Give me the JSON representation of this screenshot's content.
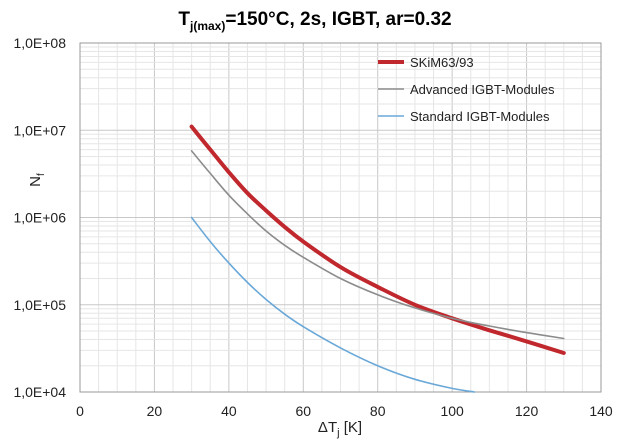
{
  "chart_data": {
    "type": "line",
    "title": {
      "pre": "T",
      "sub": "j(max)",
      "post": "=150°C,  2s,  IGBT, ar=0.32"
    },
    "xlabel": {
      "pre": "ΔT",
      "sub": "j",
      "post": " [K]"
    },
    "ylabel": {
      "pre": "N",
      "sub": "f"
    },
    "xlim": [
      0,
      140
    ],
    "ylim": [
      10000,
      100000000
    ],
    "yscale": "log",
    "grid": true,
    "legend_position": "top-right",
    "xticks": [
      "0",
      "20",
      "40",
      "60",
      "80",
      "100",
      "120",
      "140"
    ],
    "xtick_values": [
      0,
      20,
      40,
      60,
      80,
      100,
      120,
      140
    ],
    "yticks": [
      "1,0E+04",
      "1,0E+05",
      "1,0E+06",
      "1,0E+07",
      "1,0E+08"
    ],
    "ytick_values": [
      10000,
      100000,
      1000000,
      10000000,
      100000000
    ],
    "series": [
      {
        "name": "SKiM63/93",
        "color": "#c0282d",
        "x": [
          30,
          35,
          40,
          45,
          50,
          55,
          60,
          70,
          80,
          90,
          100,
          110,
          120,
          130
        ],
        "y": [
          11000000,
          6000000,
          3300000,
          1900000,
          1200000,
          780000,
          530000,
          270000,
          160000,
          100000,
          70000,
          51000,
          38000,
          28000
        ]
      },
      {
        "name": "Advanced IGBT-Modules",
        "color": "#8c8c8c",
        "x": [
          30,
          35,
          40,
          45,
          50,
          55,
          60,
          70,
          80,
          90,
          100,
          110,
          120,
          130
        ],
        "y": [
          5800000,
          3200000,
          1800000,
          1100000,
          700000,
          480000,
          350000,
          200000,
          130000,
          92000,
          70000,
          57000,
          48000,
          41000
        ]
      },
      {
        "name": "Standard IGBT-Modules",
        "color": "#6aa8d8",
        "x": [
          30,
          35,
          40,
          45,
          50,
          55,
          60,
          70,
          80,
          90,
          100,
          106
        ],
        "y": [
          1000000,
          530000,
          300000,
          180000,
          115000,
          78000,
          56000,
          32000,
          20000,
          14000,
          11000,
          10000
        ]
      }
    ]
  }
}
